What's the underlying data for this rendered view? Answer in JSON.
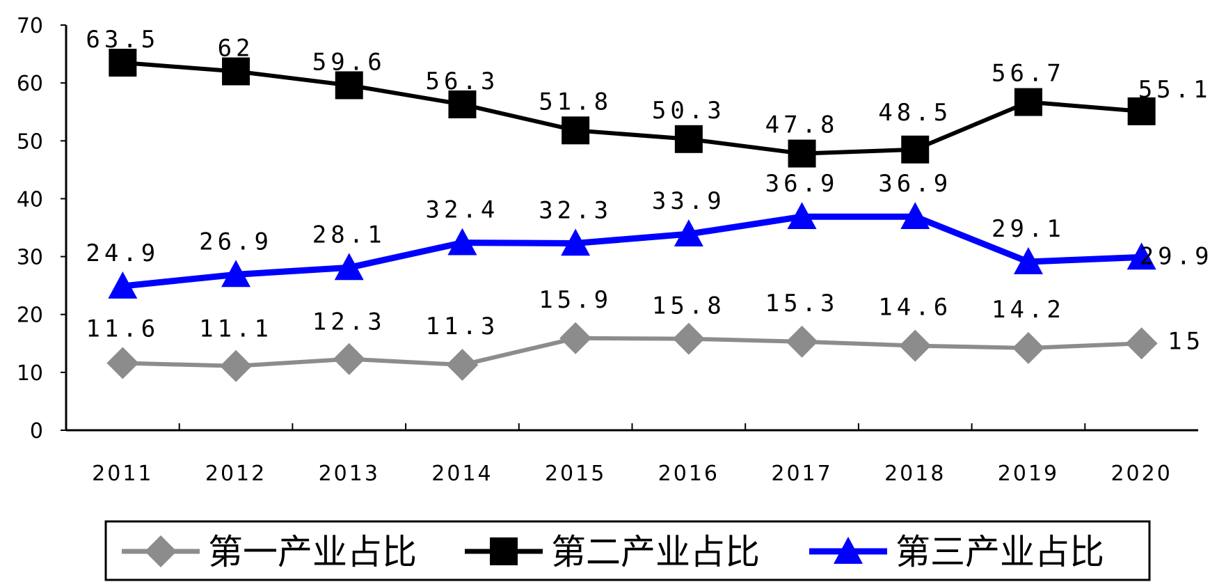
{
  "chart_data": {
    "type": "line",
    "categories": [
      "2011",
      "2012",
      "2013",
      "2014",
      "2015",
      "2016",
      "2017",
      "2018",
      "2019",
      "2020"
    ],
    "ylim": [
      0,
      70
    ],
    "yticks": [
      "0",
      "10",
      "20",
      "30",
      "40",
      "50",
      "60",
      "70"
    ],
    "grid": false,
    "legend_position": "bottom",
    "series": [
      {
        "name": "第一产业占比",
        "color": "#8c8c8c",
        "marker": "diamond",
        "values": [
          11.6,
          11.1,
          12.3,
          11.3,
          15.9,
          15.8,
          15.3,
          14.6,
          14.2,
          15
        ],
        "labels": [
          "11.6",
          "11.1",
          "12.3",
          "11.3",
          "15.9",
          "15.8",
          "15.3",
          "14.6",
          "14.2",
          "15"
        ]
      },
      {
        "name": "第二产业占比",
        "color": "#000000",
        "marker": "square",
        "values": [
          63.5,
          62,
          59.6,
          56.3,
          51.8,
          50.3,
          47.8,
          48.5,
          56.7,
          55.1
        ],
        "labels": [
          "63.5",
          "62",
          "59.6",
          "56.3",
          "51.8",
          "50.3",
          "47.8",
          "48.5",
          "56.7",
          "55.1"
        ]
      },
      {
        "name": "第三产业占比",
        "color": "#0000ff",
        "marker": "triangle",
        "values": [
          24.9,
          26.9,
          28.1,
          32.4,
          32.3,
          33.9,
          36.9,
          36.9,
          29.1,
          29.9
        ],
        "labels": [
          "24.9",
          "26.9",
          "28.1",
          "32.4",
          "32.3",
          "33.9",
          "36.9",
          "36.9",
          "29.1",
          "29.9"
        ]
      }
    ]
  }
}
